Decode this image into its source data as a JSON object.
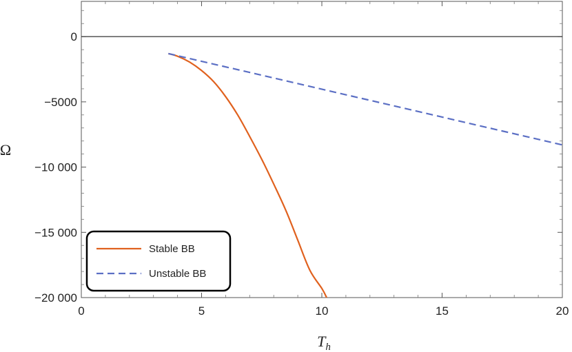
{
  "chart_data": {
    "type": "line",
    "xlabel": "T",
    "xlabel_sub": "h",
    "ylabel": "Ω",
    "xlim": [
      0,
      20
    ],
    "ylim": [
      -20000,
      2700
    ],
    "x_ticks": [
      0,
      5,
      10,
      15,
      20
    ],
    "x_tick_labels": [
      "0",
      "5",
      "10",
      "15",
      "20"
    ],
    "y_ticks": [
      0,
      -5000,
      -10000,
      -15000,
      -20000
    ],
    "y_tick_labels": [
      "0",
      "−5000",
      "−10 000",
      "−15 000",
      "−20 000"
    ],
    "grid": false,
    "zero_line": true,
    "legend_position": "bottom-left",
    "series": [
      {
        "name": "Stable BB",
        "color": "#e0611e",
        "dash": "solid",
        "x": [
          3.62,
          4.0,
          4.5,
          5.0,
          5.5,
          6.0,
          6.5,
          7.0,
          7.5,
          8.0,
          8.5,
          9.0,
          9.5,
          10.0,
          10.2
        ],
        "y": [
          -1300,
          -1500,
          -1950,
          -2600,
          -3450,
          -4600,
          -6000,
          -7650,
          -9400,
          -11300,
          -13300,
          -15600,
          -17900,
          -19300,
          -20000
        ]
      },
      {
        "name": "Unstable BB",
        "color": "#5b6fc4",
        "dash": "dashed",
        "x": [
          3.62,
          20
        ],
        "y": [
          -1300,
          -8300
        ]
      }
    ]
  }
}
